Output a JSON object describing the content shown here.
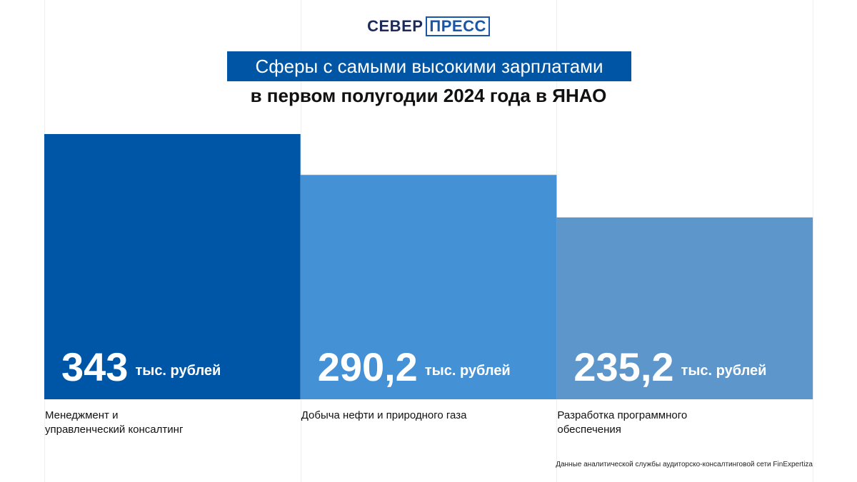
{
  "logo": {
    "part1": "СЕВЕР",
    "part2": "ПРЕСС"
  },
  "header": {
    "title": "Сферы с самыми высокими зарплатами",
    "subtitle": "в первом полугодии 2024 года в ЯНАО"
  },
  "footnote": "Данные аналитической службы аудиторско-консалтинговой сети FinExpertiza",
  "chart_data": {
    "type": "bar",
    "categories": [
      "Менеджмент и управленческий консалтинг",
      "Добыча нефти и природного газа",
      "Разработка программного обеспечения"
    ],
    "category_lines": [
      [
        "Менеджмент и",
        "управленческий консалтинг"
      ],
      [
        "Добыча нефти и природного газа"
      ],
      [
        "Разработка программного",
        "обеспечения"
      ]
    ],
    "values": [
      343,
      290.2,
      235.2
    ],
    "value_labels": [
      "343",
      "290,2",
      "235,2"
    ],
    "unit_label": "тыс. рублей",
    "colors": [
      "#0056a6",
      "#4591d6",
      "#5c96cb"
    ],
    "ylim": [
      0,
      343
    ],
    "grid": false
  }
}
